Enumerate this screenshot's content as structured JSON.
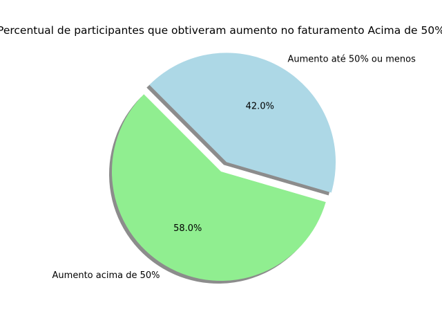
{
  "chart_data": {
    "type": "pie",
    "title": "Percentual de participantes que obtiveram aumento no faturamento Acima de 50%",
    "slices": [
      {
        "label": "Aumento acima de 50%",
        "value": 58.0,
        "pct_label": "58.0%",
        "color": "#90ee90",
        "exploded": false
      },
      {
        "label": "Aumento até 50% ou menos",
        "value": 42.0,
        "pct_label": "42.0%",
        "color": "#add8e6",
        "exploded": true
      }
    ],
    "shadow": true,
    "start_angle_deg": 135,
    "legend": "none"
  }
}
